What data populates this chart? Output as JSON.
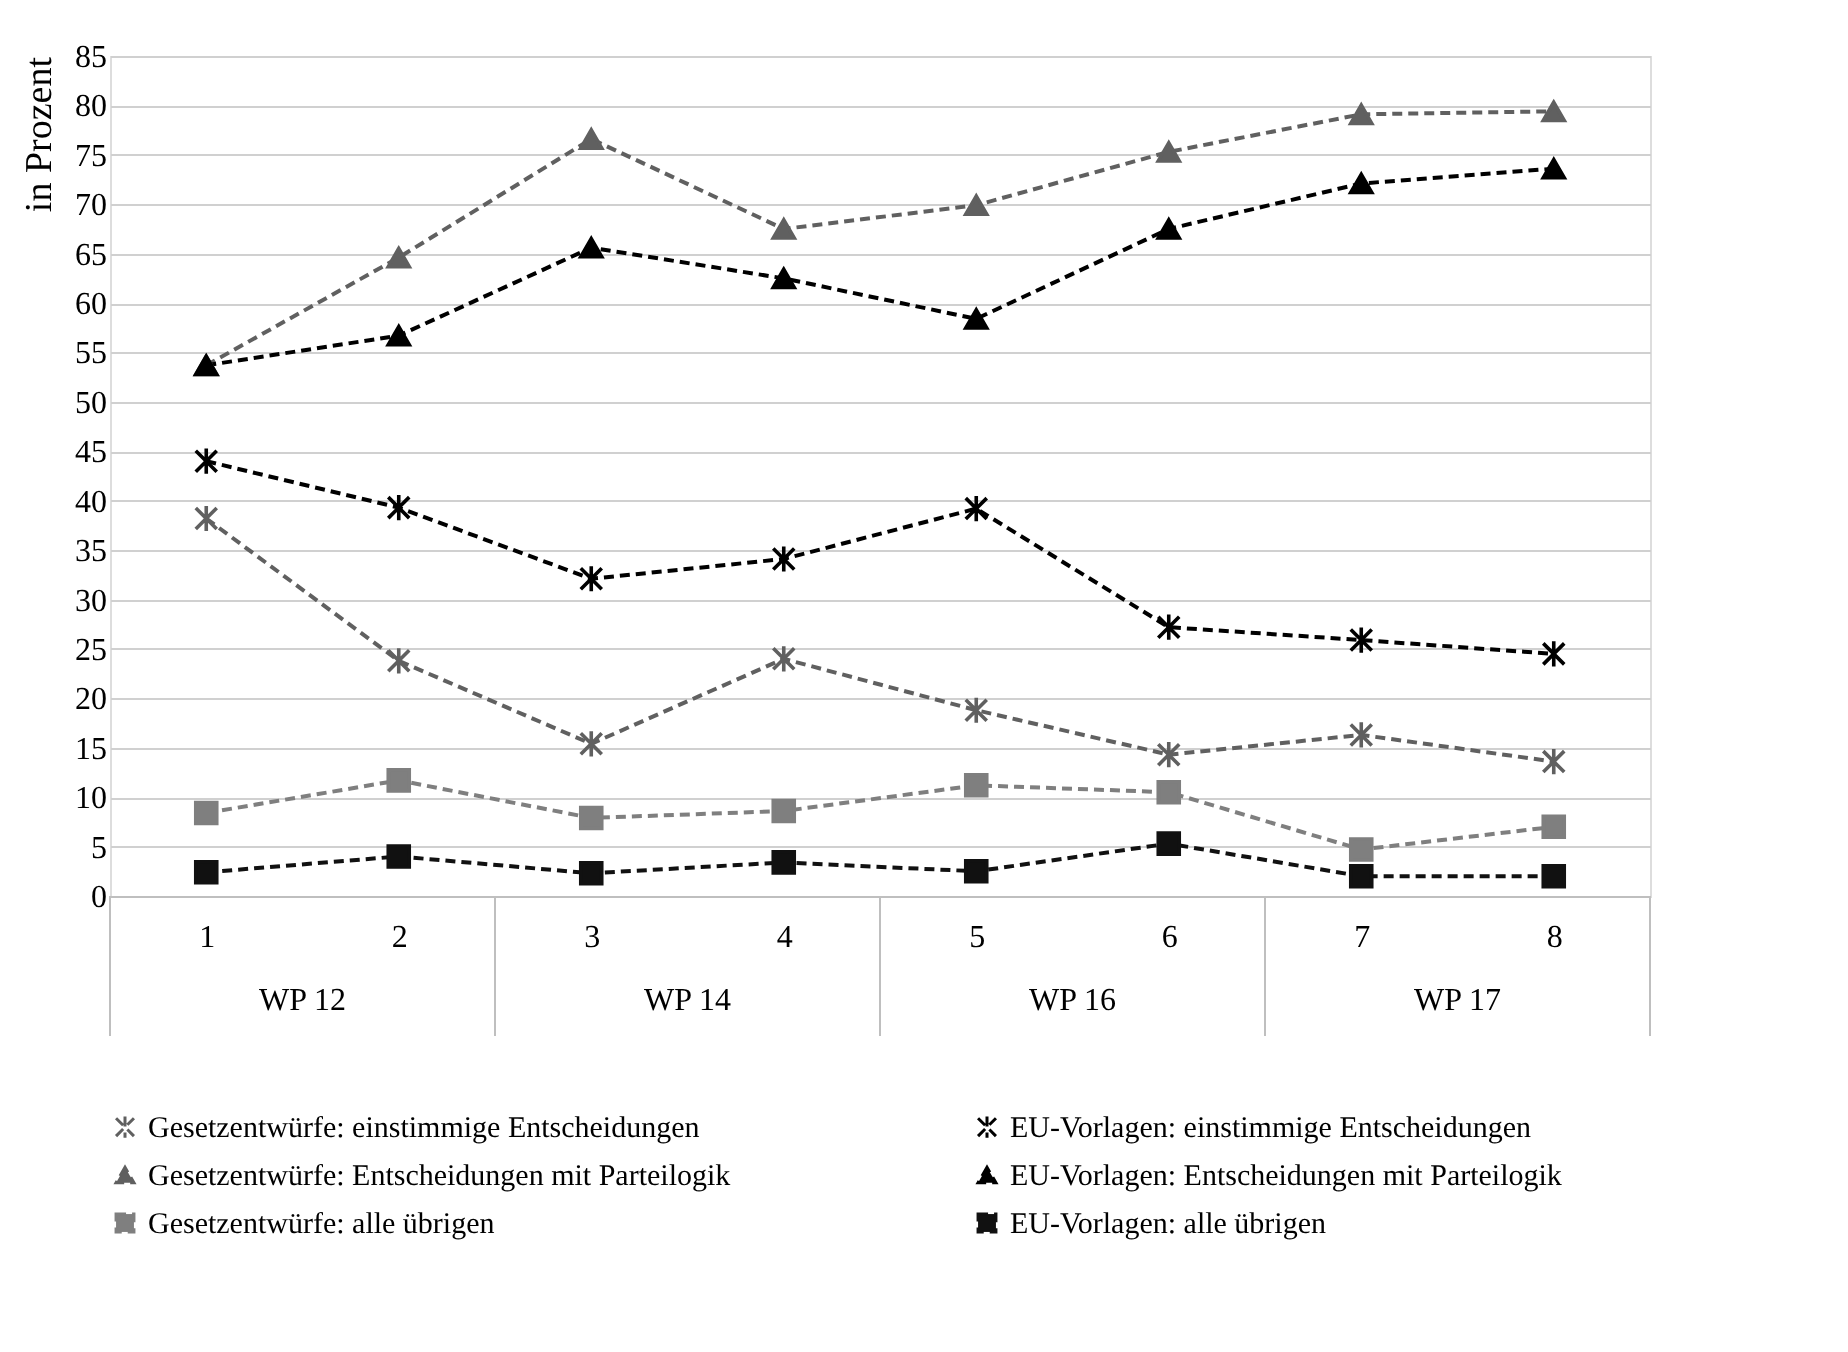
{
  "chart_data": {
    "type": "line",
    "ylabel": "in Prozent",
    "categories": [
      "1",
      "2",
      "3",
      "4",
      "5",
      "6",
      "7",
      "8"
    ],
    "annotations": [
      "WP 12",
      "WP 14",
      "WP 16",
      "WP 17"
    ],
    "ylim": [
      0,
      85
    ],
    "yticks": [
      0,
      5,
      10,
      15,
      20,
      25,
      30,
      35,
      40,
      45,
      50,
      55,
      60,
      65,
      70,
      75,
      80,
      85
    ],
    "grid": "y",
    "legend": "bottom",
    "line_style": "dashed",
    "series": [
      {
        "name": "Gesetzentwürfe: einstimmige Entscheidungen",
        "color": "#606060",
        "marker": "cross",
        "values": [
          38.2,
          23.8,
          15.4,
          24.0,
          18.8,
          14.3,
          16.3,
          13.6
        ]
      },
      {
        "name": "EU-Vorlagen: einstimmige Entscheidungen",
        "color": "#000000",
        "marker": "cross",
        "values": [
          44.0,
          39.3,
          32.1,
          34.1,
          39.2,
          27.2,
          25.9,
          24.5
        ]
      },
      {
        "name": "Gesetzentwürfe: Entscheidungen mit Parteilogik",
        "color": "#606060",
        "marker": "triangle",
        "values": [
          53.7,
          64.6,
          76.6,
          67.5,
          69.9,
          75.3,
          79.1,
          79.4
        ]
      },
      {
        "name": "EU-Vorlagen: Entscheidungen mit Parteilogik",
        "color": "#000000",
        "marker": "triangle",
        "values": [
          53.7,
          56.7,
          65.6,
          62.5,
          58.4,
          67.5,
          72.1,
          73.6
        ]
      },
      {
        "name": "Gesetzentwürfe: alle übrigen",
        "color": "#7f7f7f",
        "marker": "square",
        "values": [
          8.4,
          11.7,
          7.9,
          8.6,
          11.2,
          10.5,
          4.7,
          7.0
        ]
      },
      {
        "name": "EU-Vorlagen: alle übrigen",
        "color": "#111111",
        "marker": "square",
        "values": [
          2.4,
          4.0,
          2.3,
          3.4,
          2.5,
          5.3,
          2.0,
          2.0
        ]
      }
    ]
  }
}
